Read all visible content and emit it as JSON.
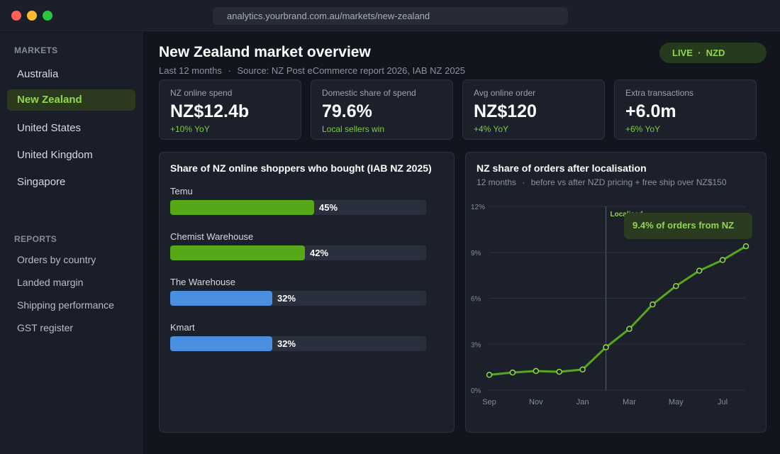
{
  "browser": {
    "url": "analytics.yourbrand.com.au/markets/new-zealand"
  },
  "sidebar": {
    "markets_heading": "MARKETS",
    "markets": [
      {
        "label": "Australia",
        "active": false
      },
      {
        "label": "New Zealand",
        "active": true
      },
      {
        "label": "United States",
        "active": false
      },
      {
        "label": "United Kingdom",
        "active": false
      },
      {
        "label": "Singapore",
        "active": false
      }
    ],
    "reports_heading": "REPORTS",
    "reports": [
      "Orders by country",
      "Landed margin",
      "Shipping performance",
      "GST register"
    ]
  },
  "header": {
    "title": "New Zealand market overview",
    "period": "Last 12 months",
    "separator": "·",
    "source": "Source: NZ Post eCommerce report 2026, IAB NZ 2025",
    "badge": "LIVE  ·  NZD"
  },
  "kpis": [
    {
      "label": "NZ online spend",
      "value": "NZ$12.4b",
      "delta": "+10% YoY"
    },
    {
      "label": "Domestic share of spend",
      "value": "79.6%",
      "delta": "Local sellers win"
    },
    {
      "label": "Avg online order",
      "value": "NZ$120",
      "delta": "+4% YoY"
    },
    {
      "label": "Extra transactions",
      "value": "+6.0m",
      "delta": "+6% YoY"
    }
  ],
  "colors": {
    "accent": "#8fd84a",
    "green_bar": "#57a818",
    "blue_bar": "#4a8fe0",
    "line": "#57a818"
  },
  "chart_data": [
    {
      "type": "bar",
      "orientation": "horizontal",
      "title": "Share of NZ online shoppers who bought (IAB NZ 2025)",
      "categories": [
        "Temu",
        "Chemist Warehouse",
        "The Warehouse",
        "Kmart"
      ],
      "values": [
        45,
        42,
        32,
        32
      ],
      "value_labels": [
        "45%",
        "42%",
        "32%",
        "32%"
      ],
      "bar_colors": [
        "#57a818",
        "#57a818",
        "#4a8fe0",
        "#4a8fe0"
      ],
      "xlim": [
        0,
        80
      ]
    },
    {
      "type": "line",
      "title": "NZ share of orders after localisation",
      "subtitle_period": "12 months",
      "subtitle_separator": "·",
      "subtitle_detail": "before vs after NZD pricing + free ship over NZ$150",
      "x": [
        "Sep",
        "Oct",
        "Nov",
        "Dec",
        "Jan",
        "Feb",
        "Mar",
        "Apr",
        "May",
        "Jun",
        "Jul",
        "Aug"
      ],
      "x_tick_labels": [
        "Sep",
        "Nov",
        "Jan",
        "Mar",
        "May",
        "Jul"
      ],
      "y_tick_labels": [
        "0%",
        "3%",
        "6%",
        "9%",
        "12%"
      ],
      "series": [
        {
          "values": [
            1.0,
            1.15,
            1.25,
            1.2,
            1.35,
            2.8,
            4.0,
            5.6,
            6.8,
            7.8,
            8.5,
            9.4
          ]
        }
      ],
      "ylim": [
        0,
        12
      ],
      "grid": true,
      "marker": {
        "label": "Localised",
        "x": "Feb"
      },
      "annotation": "9.4% of orders from NZ"
    }
  ]
}
